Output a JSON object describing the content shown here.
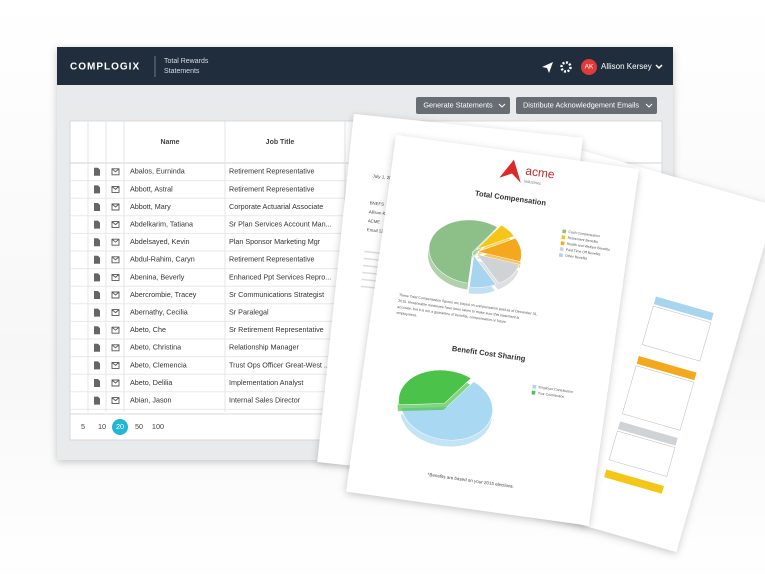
{
  "header": {
    "logo": "COMPLOGIX",
    "product": [
      "Total Rewards",
      "Statements"
    ],
    "user_initials": "AK",
    "user_name": "Allison Kersey"
  },
  "toolbar": {
    "buttons": [
      "Generate Statements",
      "Distribute Acknowledgement Emails"
    ]
  },
  "table": {
    "columns": [
      "Name",
      "Job Title"
    ],
    "rows": [
      [
        "Abalos, Eurninda",
        "Retirement Representative"
      ],
      [
        "Abbott, Astral",
        "Retirement Representative"
      ],
      [
        "Abbott, Mary",
        "Corporate Actuarial Associate"
      ],
      [
        "Abdelkarim, Tatiana",
        "Sr Plan Services Account Man..."
      ],
      [
        "Abdelsayed, Kevin",
        "Plan Sponsor Marketing Mgr"
      ],
      [
        "Abdul-Rahim, Caryn",
        "Retirement Representative"
      ],
      [
        "Abenina, Beverly",
        "Enhanced Ppt Services Repro..."
      ],
      [
        "Abercrombie, Tracey",
        "Sr Communications Strategist"
      ],
      [
        "Abernathy, Cecilia",
        "Sr Paralegal"
      ],
      [
        "Abeto, Che",
        "Sr Retirement Representative"
      ],
      [
        "Abeto, Christina",
        "Relationship Manager"
      ],
      [
        "Abeto, Clemencia",
        "Trust Ops Officer Great-West ..."
      ],
      [
        "Abeto, Delilia",
        "Implementation Analyst"
      ],
      [
        "Abian, Jason",
        "Internal Sales Director"
      ]
    ]
  },
  "pagination": {
    "sizes": [
      5,
      10,
      20,
      50,
      100
    ],
    "selected": 20
  },
  "letter": {
    "date": "July 1, 2020",
    "lines": [
      "BNEFS",
      "Allison Kersey",
      "ACME",
      "Email 12345"
    ]
  },
  "statement": {
    "logo": "acme",
    "logo_sub": "industries",
    "note": [
      "These Total Compensation figures are based on compensation paid as of December 31,",
      "2015. Reasonable measures have been taken to make sure this statement is",
      "accurate, but it is not a guarantee of benefits, compensation or future",
      "employment."
    ],
    "footnote": "*Benefits are based on your 2015 elections."
  },
  "chart_data": [
    {
      "type": "pie",
      "title": "Total Compensation",
      "categories": [
        "Cash Compensation",
        "Retirement Benefits",
        "Health and Welfare Benefits",
        "Paid Time Off Benefits",
        "Other Benefits"
      ],
      "values": [
        58,
        7,
        12,
        13,
        10
      ],
      "colors": [
        "#8dbf88",
        "#f5c518",
        "#f4a81d",
        "#cfd3d6",
        "#a7d4ee"
      ]
    },
    {
      "type": "pie",
      "title": "Benefit Cost Sharing",
      "categories": [
        "Employer Contribution",
        "Your Contribution"
      ],
      "values": [
        63,
        37
      ],
      "colors": [
        "#a9d8f2",
        "#4bc34b"
      ]
    }
  ]
}
